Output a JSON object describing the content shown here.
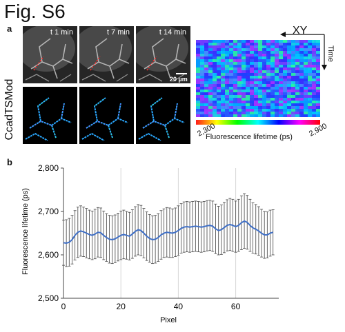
{
  "figure": {
    "title": "Fig. S6",
    "panel_a": "a",
    "panel_b": "b",
    "row_label": "CcadTSMod",
    "time_labels": [
      "t 1 min",
      "t 7 min",
      "t 14 min"
    ],
    "scale_bar": "20 µm",
    "kymograph": {
      "x_axis_label": "XY",
      "y_axis_label": "Time",
      "colorbar_min": "2,300",
      "colorbar_max": "2,900",
      "colorbar_label": "Fluorescence lifetime (ps)"
    }
  },
  "chart_data": {
    "type": "line",
    "title": "",
    "xlabel": "Pixel",
    "ylabel": "Fluorescence lifetime (ps)",
    "xlim": [
      0,
      75
    ],
    "ylim": [
      2500,
      2800
    ],
    "x_ticks": [
      "0",
      "20",
      "40",
      "60"
    ],
    "y_ticks": [
      "2,500",
      "2,600",
      "2,700",
      "2,800"
    ],
    "grid": "vertical",
    "legend": "none",
    "series_color": "#3f6fc6",
    "error_color": "#555555",
    "series": [
      {
        "x": [
          0,
          1,
          2,
          3,
          4,
          5,
          6,
          7,
          8,
          9,
          10,
          11,
          12,
          13,
          14,
          15,
          16,
          17,
          18,
          19,
          20,
          21,
          22,
          23,
          24,
          25,
          26,
          27,
          28,
          29,
          30,
          31,
          32,
          33,
          34,
          35,
          36,
          37,
          38,
          39,
          40,
          41,
          42,
          43,
          44,
          45,
          46,
          47,
          48,
          49,
          50,
          51,
          52,
          53,
          54,
          55,
          56,
          57,
          58,
          59,
          60,
          61,
          62,
          63,
          64,
          65,
          66,
          67,
          68,
          69,
          70,
          71,
          72,
          73
        ],
        "y": [
          2628,
          2627,
          2629,
          2635,
          2645,
          2652,
          2655,
          2653,
          2650,
          2647,
          2645,
          2648,
          2652,
          2651,
          2645,
          2640,
          2636,
          2635,
          2637,
          2641,
          2645,
          2647,
          2645,
          2643,
          2648,
          2654,
          2658,
          2656,
          2650,
          2643,
          2638,
          2635,
          2636,
          2640,
          2646,
          2650,
          2652,
          2651,
          2650,
          2652,
          2656,
          2661,
          2664,
          2665,
          2664,
          2665,
          2666,
          2665,
          2664,
          2665,
          2667,
          2668,
          2666,
          2660,
          2656,
          2658,
          2663,
          2668,
          2670,
          2668,
          2665,
          2668,
          2674,
          2678,
          2675,
          2668,
          2662,
          2659,
          2655,
          2650,
          2646,
          2646,
          2650,
          2652
        ],
        "error": [
          52,
          54,
          55,
          56,
          57,
          58,
          58,
          57,
          57,
          56,
          56,
          57,
          57,
          57,
          56,
          55,
          55,
          55,
          55,
          55,
          56,
          56,
          55,
          55,
          56,
          57,
          58,
          58,
          57,
          56,
          55,
          55,
          55,
          55,
          56,
          56,
          57,
          57,
          56,
          56,
          57,
          57,
          58,
          58,
          58,
          58,
          58,
          58,
          58,
          58,
          58,
          58,
          58,
          57,
          56,
          57,
          58,
          59,
          60,
          60,
          59,
          60,
          62,
          63,
          62,
          60,
          58,
          57,
          56,
          55,
          54,
          53,
          53,
          52
        ]
      }
    ]
  }
}
